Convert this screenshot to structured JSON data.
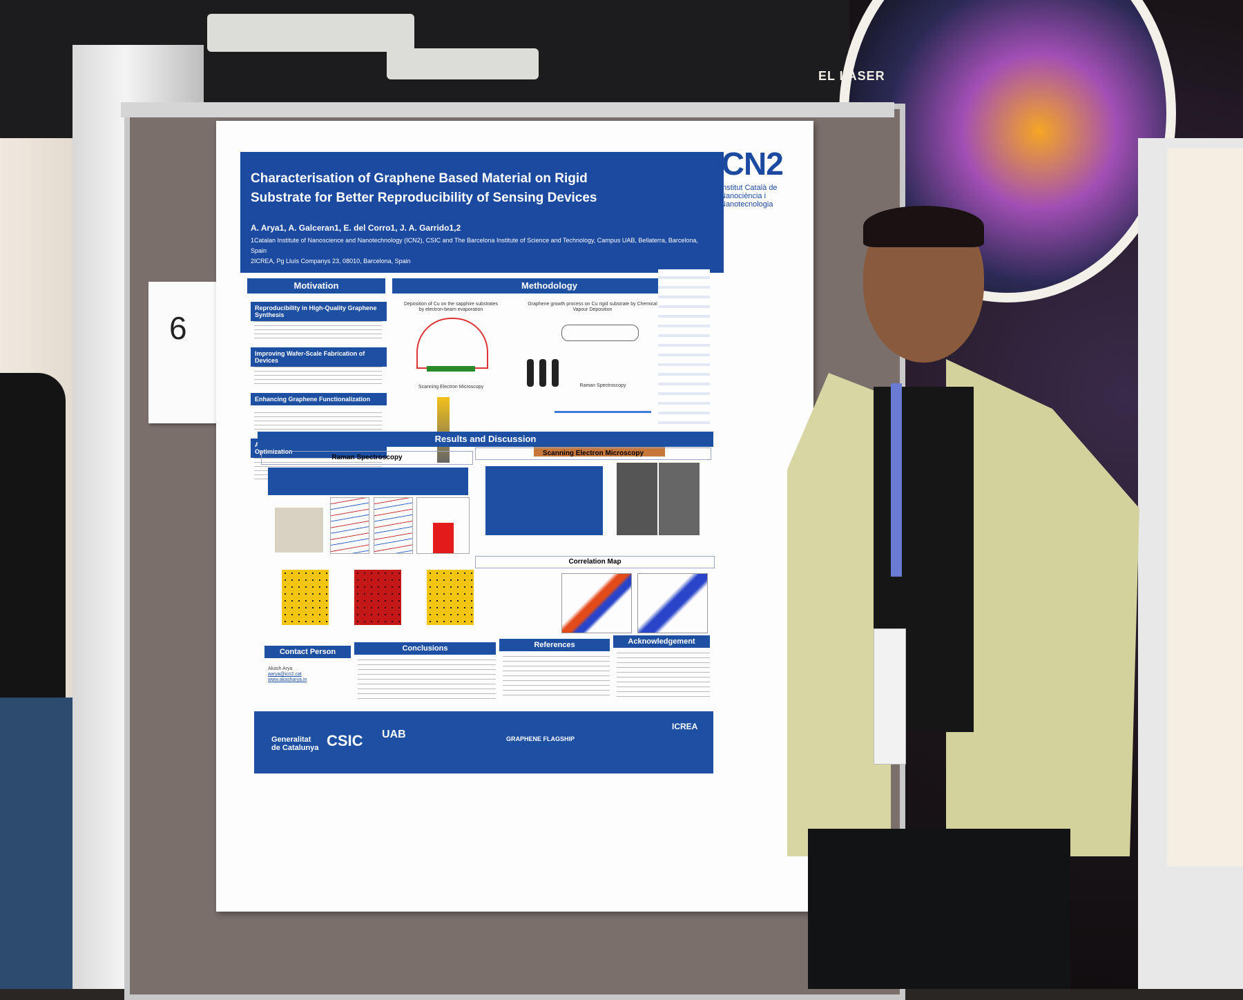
{
  "board_number": "6",
  "background_sign": {
    "title": "EL LÀSER"
  },
  "poster": {
    "title": "Characterisation of Graphene Based Material on Rigid Substrate for Better Reproducibility of Sensing Devices",
    "authors": "A. Arya1, A. Galceran1, E. del Corro1, J. A. Garrido1,2",
    "affiliation_1": "1Catalan Institute of Nanoscience and Nanotechnology (ICN2), CSIC and The Barcelona Institute of Science and Technology, Campus UAB, Bellaterra, Barcelona, Spain",
    "affiliation_2": "2ICREA, Pg Lluís Companys 23, 08010, Barcelona, Spain",
    "logo": {
      "name": "ICN2",
      "subtitle": "Institut Català de Nanociència i Nanotecnologia"
    },
    "sections": {
      "motivation": "Motivation",
      "methodology": "Methodology",
      "results": "Results and Discussion",
      "raman": "Raman Spectroscopy",
      "sem": "Scanning Electron Microscopy",
      "correlation": "Correlation Map",
      "contact": "Contact Person",
      "conclusions": "Conclusions",
      "references": "References",
      "acknowledgement": "Acknowledgement"
    },
    "motivation_items": [
      "Reproducibility in High-Quality Graphene Synthesis",
      "Improving Wafer-Scale Fabrication of Devices",
      "Enhancing Graphene Functionalization",
      "Advanced Characterization for Optimization"
    ],
    "methodology_labels": {
      "deposition": "Deposition of Cu on the sapphire substrates by electron-beam evaporation",
      "growth": "Graphene growth process on Cu rigid substrate by Chemical Vapour Deposition",
      "sem_label": "Scanning Electron Microscopy",
      "raman_label": "Raman Spectroscopy"
    },
    "contact": {
      "name": "Akash Arya",
      "email": "aarya@icn2.cat",
      "web": "www.akasharya.in"
    },
    "footer_labels": {
      "generalitat": "Generalitat de Catalunya",
      "csic": "CSIC",
      "uab": "UAB",
      "flagship": "GRAPHENE FLAGSHIP",
      "icrea": "ICREA"
    }
  }
}
